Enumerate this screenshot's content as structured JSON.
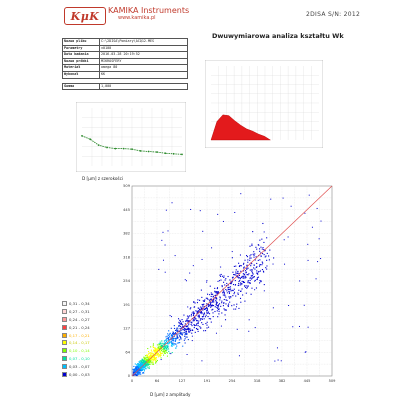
{
  "header": {
    "logo_text": "KμK",
    "company": "KAMIKA Instruments",
    "website": "www.kamika.pl",
    "stamp": "2DISA S/N: 2012",
    "report_title": "Dwuwymiarowa analiza kształtu Wk"
  },
  "info_table": [
    {
      "key": "Nazwa pliku",
      "value": "C:\\2DISA\\Pomiary\\ACQ12.MES"
    },
    {
      "key": "Parametry",
      "value": "±0100"
    },
    {
      "key": "Data badania",
      "value": "2016-03-28 20:19:52"
    },
    {
      "key": "Nazwa próbki",
      "value": "MIKROSFERY"
    },
    {
      "key": "Materiał",
      "value": "omega 80"
    },
    {
      "key": "Wykonał",
      "value": "KK"
    },
    {
      "key": "Gamma",
      "value": "1,000"
    }
  ],
  "colors": {
    "brand": "#c0392b",
    "green_series": "#2e8b2e",
    "red_series": "#e31a1c",
    "diagonal": "#e05050"
  },
  "legend": [
    {
      "label": "0,31 - 0,34",
      "color": "#f5f5f5"
    },
    {
      "label": "0,27 - 0,31",
      "color": "#ffd6d6"
    },
    {
      "label": "0,24 - 0,27",
      "color": "#ff9a9a"
    },
    {
      "label": "0,21 - 0,24",
      "color": "#ff4040"
    },
    {
      "label": "0,17 - 0,21",
      "color": "#ffb000"
    },
    {
      "label": "0,14 - 0,17",
      "color": "#ffff00"
    },
    {
      "label": "0,10 - 0,14",
      "color": "#80ff00"
    },
    {
      "label": "0,07 - 0,10",
      "color": "#00e0a0"
    },
    {
      "label": "0,03 - 0,07",
      "color": "#00c0ff"
    },
    {
      "label": "0,00 - 0,03",
      "color": "#0000d0"
    }
  ],
  "chart_data": [
    {
      "type": "line",
      "title": "",
      "xlabel": "D [μm] z szerokości",
      "ylabel": "",
      "x": [
        0,
        10,
        20,
        30,
        40,
        50,
        60,
        70,
        80,
        90,
        100,
        110,
        120
      ],
      "series": [
        {
          "values": [
            52,
            46,
            36,
            32,
            30,
            30,
            29,
            26,
            25,
            24,
            22,
            21,
            20
          ]
        }
      ],
      "ylim": [
        0,
        100
      ],
      "grid": true
    },
    {
      "type": "area",
      "title": "",
      "xlabel": "",
      "ylabel": "",
      "x": [
        0,
        20,
        40,
        60,
        80,
        100,
        120,
        140,
        160,
        180,
        200
      ],
      "series": [
        {
          "values": [
            0,
            25,
            34,
            33,
            26,
            20,
            15,
            12,
            8,
            5,
            0
          ]
        }
      ],
      "ylim": [
        0,
        100
      ],
      "grid": true
    },
    {
      "type": "scatter",
      "title": "",
      "xlabel": "D [μm] z amplitudy",
      "ylabel": "D [μm] z szerokości",
      "x_ticks": [
        "0",
        "64",
        "127",
        "191",
        "254",
        "318",
        "382",
        "445",
        "509"
      ],
      "y_ticks": [
        "0",
        "64",
        "127",
        "191",
        "254",
        "318",
        "382",
        "445",
        "509"
      ],
      "xlim": [
        0,
        509
      ],
      "ylim": [
        0,
        509
      ],
      "grid": true,
      "diagonal": true
    }
  ]
}
